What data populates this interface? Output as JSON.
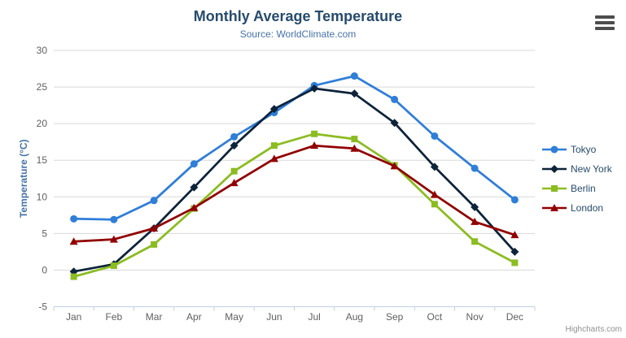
{
  "credits": {
    "text": "Highcharts.com"
  },
  "icons": {
    "export_menu": "hamburger"
  },
  "chart_data": {
    "type": "line",
    "title": "Monthly Average Temperature",
    "subtitle": "Source: WorldClimate.com",
    "xlabel": "",
    "ylabel": "Temperature (°C)",
    "ylim": [
      -5,
      30
    ],
    "yticks": [
      -5,
      0,
      5,
      10,
      15,
      20,
      25,
      30
    ],
    "grid": true,
    "legend_position": "right",
    "categories": [
      "Jan",
      "Feb",
      "Mar",
      "Apr",
      "May",
      "Jun",
      "Jul",
      "Aug",
      "Sep",
      "Oct",
      "Nov",
      "Dec"
    ],
    "series": [
      {
        "name": "Tokyo",
        "color": "#2f7ed8",
        "marker": "circle",
        "values": [
          7.0,
          6.9,
          9.5,
          14.5,
          18.2,
          21.5,
          25.2,
          26.5,
          23.3,
          18.3,
          13.9,
          9.6
        ]
      },
      {
        "name": "New York",
        "color": "#0d233a",
        "marker": "diamond",
        "values": [
          -0.2,
          0.8,
          5.7,
          11.3,
          17.0,
          22.0,
          24.8,
          24.1,
          20.1,
          14.1,
          8.6,
          2.5
        ]
      },
      {
        "name": "Berlin",
        "color": "#8bbc21",
        "marker": "square",
        "values": [
          -0.9,
          0.6,
          3.5,
          8.4,
          13.5,
          17.0,
          18.6,
          17.9,
          14.3,
          9.0,
          3.9,
          1.0
        ]
      },
      {
        "name": "London",
        "color": "#910000",
        "marker": "triangle",
        "values": [
          3.9,
          4.2,
          5.7,
          8.5,
          11.9,
          15.2,
          17.0,
          16.6,
          14.2,
          10.3,
          6.6,
          4.8
        ]
      }
    ],
    "style_colors": {
      "title": "#274b6d",
      "subtitle": "#4572a7",
      "axis_title": "#4572a7",
      "axis_labels": "#606060",
      "gridline": "#d8d8d8",
      "axis_line": "#c0d0e0",
      "legend_text": "#274b6d",
      "credit": "#909090"
    }
  }
}
